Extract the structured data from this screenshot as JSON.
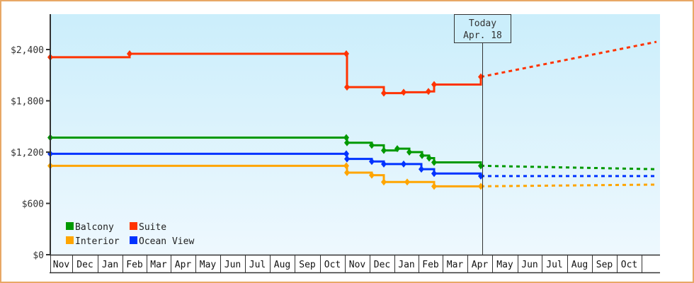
{
  "chart_data": {
    "type": "line",
    "title": "",
    "xlabel": "",
    "ylabel": "",
    "ylim": [
      0,
      2800
    ],
    "y_ticks": [
      {
        "value": 0,
        "label": "$0"
      },
      {
        "value": 600,
        "label": "$600"
      },
      {
        "value": 1200,
        "label": "$1,200"
      },
      {
        "value": 1800,
        "label": "$1,800"
      },
      {
        "value": 2400,
        "label": "$2,400"
      }
    ],
    "x_ticks": [
      "Nov",
      "Dec",
      "Jan",
      "Feb",
      "Mar",
      "Apr",
      "May",
      "Jun",
      "Jul",
      "Aug",
      "Sep",
      "Oct",
      "Nov",
      "Dec",
      "Jan",
      "Feb",
      "Mar",
      "Apr",
      "May",
      "Jun",
      "Jul",
      "Aug",
      "Sep",
      "Oct"
    ],
    "grid": false,
    "legend_position": "lower-left",
    "today_marker": {
      "line1": "Today",
      "line2": "Apr. 18"
    },
    "series": [
      {
        "name": "Balcony",
        "color": "#009900",
        "points": [
          {
            "x": "Nov (yr1) start",
            "y": 1370
          },
          {
            "x": "Oct end (yr1)",
            "y": 1370
          },
          {
            "x": "Nov early (yr2)",
            "y": 1310
          },
          {
            "x": "Nov late",
            "y": 1280
          },
          {
            "x": "Dec early",
            "y": 1220
          },
          {
            "x": "Jan early",
            "y": 1240
          },
          {
            "x": "Jan mid",
            "y": 1200
          },
          {
            "x": "Jan late",
            "y": 1160
          },
          {
            "x": "Feb early",
            "y": 1130
          },
          {
            "x": "Feb mid",
            "y": 1080
          },
          {
            "x": "Apr 18",
            "y": 1040
          }
        ],
        "projection": [
          {
            "x": "Apr 18",
            "y": 1040
          },
          {
            "x": "Oct end",
            "y": 1000
          }
        ]
      },
      {
        "name": "Suite",
        "color": "#ff3300",
        "points": [
          {
            "x": "Nov (yr1) start",
            "y": 2310
          },
          {
            "x": "Feb (yr1)",
            "y": 2350
          },
          {
            "x": "Oct end (yr1)",
            "y": 2350
          },
          {
            "x": "Nov early (yr2)",
            "y": 1960
          },
          {
            "x": "Dec early",
            "y": 1890
          },
          {
            "x": "Jan",
            "y": 1900
          },
          {
            "x": "Feb early",
            "y": 1910
          },
          {
            "x": "Feb mid",
            "y": 1990
          },
          {
            "x": "Apr 18",
            "y": 2080
          }
        ],
        "projection": [
          {
            "x": "Apr 18",
            "y": 2080
          },
          {
            "x": "Oct end",
            "y": 2490
          }
        ]
      },
      {
        "name": "Interior",
        "color": "#ffa500",
        "points": [
          {
            "x": "Nov (yr1) start",
            "y": 1040
          },
          {
            "x": "Oct end (yr1)",
            "y": 1040
          },
          {
            "x": "Nov early (yr2)",
            "y": 960
          },
          {
            "x": "Nov late",
            "y": 930
          },
          {
            "x": "Dec early",
            "y": 850
          },
          {
            "x": "Jan",
            "y": 850
          },
          {
            "x": "Feb mid",
            "y": 800
          },
          {
            "x": "Apr 18",
            "y": 800
          }
        ],
        "projection": [
          {
            "x": "Apr 18",
            "y": 800
          },
          {
            "x": "Oct end",
            "y": 820
          }
        ]
      },
      {
        "name": "Ocean View",
        "color": "#0033ff",
        "points": [
          {
            "x": "Nov (yr1) start",
            "y": 1180
          },
          {
            "x": "Oct end (yr1)",
            "y": 1180
          },
          {
            "x": "Nov early (yr2)",
            "y": 1120
          },
          {
            "x": "Nov late",
            "y": 1090
          },
          {
            "x": "Dec early",
            "y": 1060
          },
          {
            "x": "Jan",
            "y": 1060
          },
          {
            "x": "Jan late",
            "y": 1000
          },
          {
            "x": "Feb mid",
            "y": 950
          },
          {
            "x": "Apr 18",
            "y": 920
          }
        ],
        "projection": [
          {
            "x": "Apr 18",
            "y": 920
          },
          {
            "x": "Oct end",
            "y": 920
          }
        ]
      }
    ]
  },
  "legend": [
    {
      "label": "Balcony",
      "color": "#009900"
    },
    {
      "label": "Suite",
      "color": "#ff3300"
    },
    {
      "label": "Interior",
      "color": "#ffa500"
    },
    {
      "label": "Ocean View",
      "color": "#0033ff"
    }
  ]
}
